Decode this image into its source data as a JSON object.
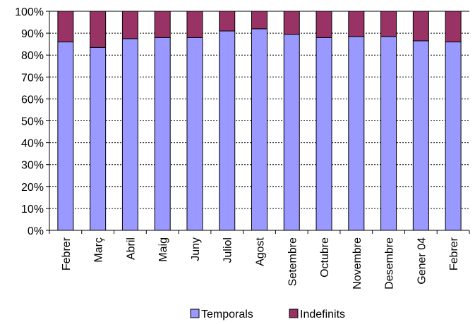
{
  "chart_data": {
    "type": "bar",
    "stacked": true,
    "percent": true,
    "categories": [
      "Febrer",
      "Març",
      "Abril",
      "Maig",
      "Juny",
      "Juliol",
      "Agost",
      "Setembre",
      "Octubre",
      "Novembre",
      "Desembre",
      "Gener 04",
      "Febrer"
    ],
    "series": [
      {
        "name": "Temporals",
        "color": "#9999ff",
        "values": [
          86.0,
          83.5,
          87.5,
          88.0,
          88.0,
          91.0,
          92.0,
          89.5,
          88.0,
          88.5,
          88.5,
          86.5,
          86.0
        ]
      },
      {
        "name": "Indefinits",
        "color": "#993366",
        "values": [
          14.0,
          16.5,
          12.5,
          12.0,
          12.0,
          9.0,
          8.0,
          10.5,
          12.0,
          11.5,
          11.5,
          13.5,
          14.0
        ]
      }
    ],
    "y_ticks": [
      "0%",
      "10%",
      "20%",
      "30%",
      "40%",
      "50%",
      "60%",
      "70%",
      "80%",
      "90%",
      "100%"
    ],
    "ylim": [
      0,
      100
    ],
    "grid": true,
    "legend_position": "bottom"
  }
}
